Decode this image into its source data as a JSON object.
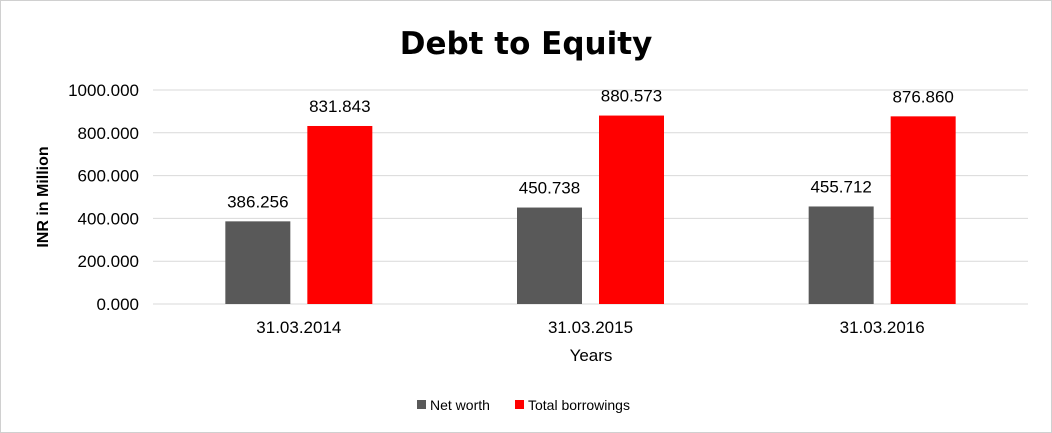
{
  "chart_data": {
    "type": "bar",
    "title": "Debt to Equity",
    "xlabel": "Years",
    "ylabel": "INR in Million",
    "categories": [
      "31.03.2014",
      "31.03.2015",
      "31.03.2016"
    ],
    "series": [
      {
        "name": "Net worth",
        "values": [
          386.256,
          450.738,
          455.712
        ],
        "color": "#595959"
      },
      {
        "name": "Total borrowings",
        "values": [
          831.843,
          880.573,
          876.86
        ],
        "color": "#ff0000"
      }
    ],
    "data_labels": [
      [
        "386.256",
        "450.738",
        "455.712"
      ],
      [
        "831.843",
        "880.573",
        "876.860"
      ]
    ],
    "ylim": [
      0,
      1000
    ],
    "yticks": [
      {
        "value": 0,
        "label": "0.000"
      },
      {
        "value": 200,
        "label": "200.000"
      },
      {
        "value": 400,
        "label": "400.000"
      },
      {
        "value": 600,
        "label": "600.000"
      },
      {
        "value": 800,
        "label": "800.000"
      },
      {
        "value": 1000,
        "label": "1000.000"
      }
    ],
    "grid": true,
    "legend": "bottom"
  }
}
